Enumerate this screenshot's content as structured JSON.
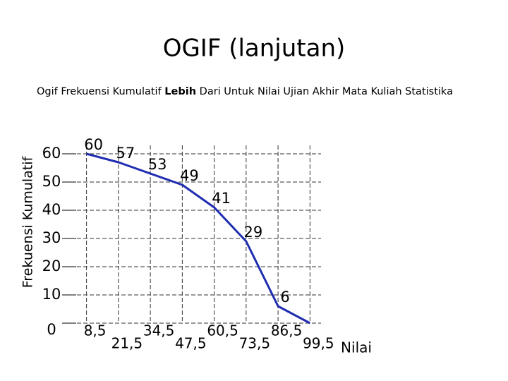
{
  "chart_data": {
    "type": "line",
    "title": "OGIF (lanjutan)",
    "subtitle": [
      "Ogif Frekuensi Kumulatif ",
      "Lebih",
      " Dari Untuk Nilai Ujian Akhir Mata Kuliah Statistika"
    ],
    "y_label": "Frekuensi Kumulatif",
    "x_label": "Nilai",
    "x": [
      {
        "value": 8.5,
        "label": "8,5"
      },
      {
        "value": 21.5,
        "label": "21,5"
      },
      {
        "value": 34.5,
        "label": "34,5"
      },
      {
        "value": 47.5,
        "label": "47,5"
      },
      {
        "value": 60.5,
        "label": "60,5"
      },
      {
        "value": 73.5,
        "label": "73,5"
      },
      {
        "value": 86.5,
        "label": "86,5"
      },
      {
        "value": 99.5,
        "label": "99,5"
      }
    ],
    "values": [
      60,
      57,
      53,
      49,
      41,
      29,
      6,
      0
    ],
    "value_labels": [
      "60",
      "57",
      "53",
      "49",
      "41",
      "29",
      "6",
      null
    ],
    "color": "#1f2db0",
    "xlim": [
      2,
      104
    ],
    "ylim": [
      0,
      60
    ],
    "yticks": [
      0,
      10,
      20,
      30,
      40,
      50,
      60
    ],
    "grid": true
  }
}
